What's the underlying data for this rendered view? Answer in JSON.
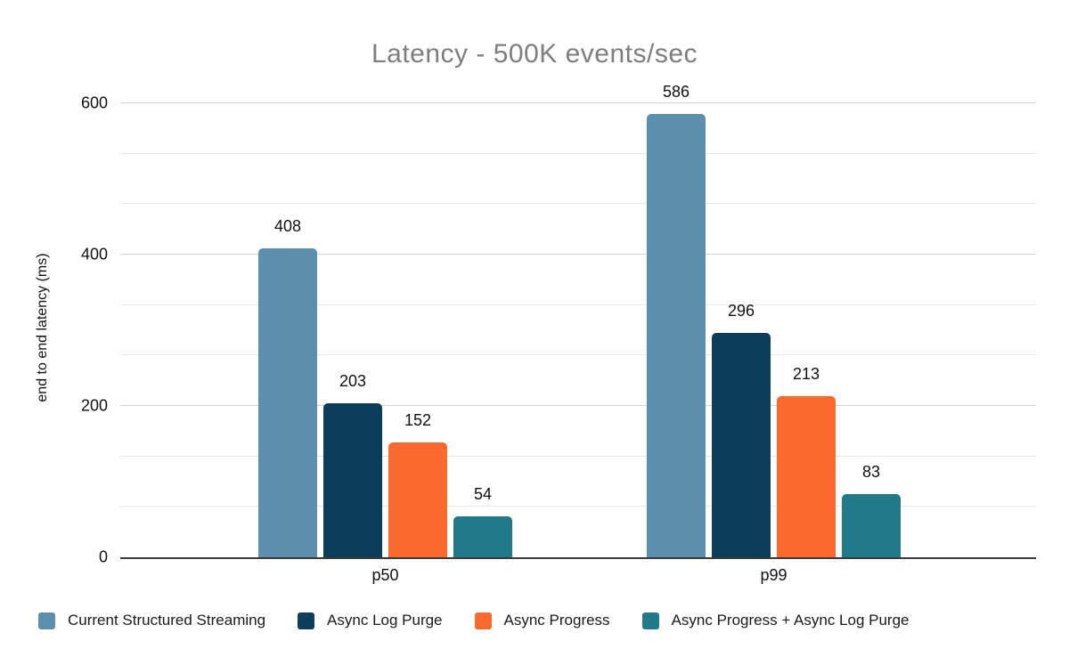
{
  "chart_data": {
    "type": "bar",
    "title": "Latency - 500K events/sec",
    "xlabel": "",
    "ylabel": "end to end latency (ms)",
    "categories": [
      "p50",
      "p99"
    ],
    "series": [
      {
        "name": "Current Structured Streaming",
        "color": "#5C8FAD",
        "values": [
          408,
          586
        ]
      },
      {
        "name": "Async Log Purge",
        "color": "#0C3D5A",
        "values": [
          203,
          296
        ]
      },
      {
        "name": "Async Progress",
        "color": "#FA692D",
        "values": [
          152,
          213
        ]
      },
      {
        "name": "Async Progress + Async Log Purge",
        "color": "#21798A",
        "values": [
          54,
          83
        ]
      }
    ],
    "data_labels": [
      [
        408,
        586
      ],
      [
        203,
        296
      ],
      [
        152,
        213
      ],
      [
        54,
        83
      ]
    ],
    "ylim": [
      0,
      600
    ],
    "yticks": [
      0,
      200,
      400,
      600
    ],
    "minor_gridline_divisions_per_major": 3,
    "grid": true,
    "legend_position": "bottom",
    "title_color": "#7E7E7E",
    "text_color": "#111111",
    "axis_line_color": "#3A3A3A",
    "gridline_color": "#E8E8E8",
    "background_color": "#FFFFFF"
  }
}
